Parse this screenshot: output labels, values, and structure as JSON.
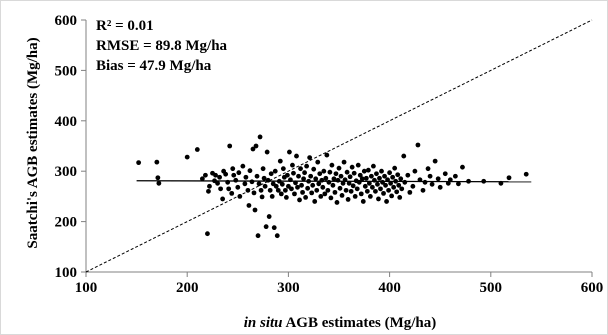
{
  "chart_data": {
    "type": "scatter",
    "title": "",
    "xlabel_italic": "in situ",
    "xlabel_rest": " AGB estimates (Mg/ha)",
    "ylabel": "Saatchi's AGB estimates (Mg/ha)",
    "xlim": [
      100,
      600
    ],
    "ylim": [
      100,
      600
    ],
    "xticks": [
      "100",
      "200",
      "300",
      "400",
      "500",
      "600"
    ],
    "yticks": [
      "100",
      "200",
      "300",
      "400",
      "500",
      "600"
    ],
    "annotations": [
      "R² = 0.01",
      "RMSE = 89.8 Mg/ha",
      "Bias = 47.9 Mg/ha"
    ],
    "one_to_one_line": {
      "style": "dashed",
      "from": [
        100,
        100
      ],
      "to": [
        600,
        600
      ]
    },
    "regression_line": {
      "style": "solid",
      "from": [
        150,
        281
      ],
      "to": [
        540,
        279
      ]
    },
    "points_color": "#000000",
    "points": [
      [
        152,
        317
      ],
      [
        170,
        318
      ],
      [
        171,
        287
      ],
      [
        172,
        276
      ],
      [
        200,
        328
      ],
      [
        210,
        343
      ],
      [
        215,
        285
      ],
      [
        218,
        292
      ],
      [
        220,
        176
      ],
      [
        221,
        260
      ],
      [
        222,
        270
      ],
      [
        225,
        296
      ],
      [
        227,
        281
      ],
      [
        228,
        292
      ],
      [
        230,
        276
      ],
      [
        232,
        288
      ],
      [
        233,
        265
      ],
      [
        235,
        245
      ],
      [
        236,
        300
      ],
      [
        238,
        294
      ],
      [
        240,
        278
      ],
      [
        241,
        265
      ],
      [
        242,
        350
      ],
      [
        244,
        256
      ],
      [
        245,
        305
      ],
      [
        246,
        292
      ],
      [
        248,
        282
      ],
      [
        250,
        268
      ],
      [
        251,
        297
      ],
      [
        252,
        250
      ],
      [
        255,
        310
      ],
      [
        257,
        275
      ],
      [
        258,
        288
      ],
      [
        260,
        262
      ],
      [
        261,
        232
      ],
      [
        262,
        301
      ],
      [
        264,
        279
      ],
      [
        265,
        344
      ],
      [
        266,
        257
      ],
      [
        267,
        223
      ],
      [
        268,
        350
      ],
      [
        269,
        290
      ],
      [
        270,
        172
      ],
      [
        271,
        275
      ],
      [
        272,
        368
      ],
      [
        273,
        262
      ],
      [
        274,
        249
      ],
      [
        275,
        305
      ],
      [
        276,
        286
      ],
      [
        277,
        270
      ],
      [
        278,
        190
      ],
      [
        279,
        338
      ],
      [
        280,
        282
      ],
      [
        281,
        210
      ],
      [
        282,
        262
      ],
      [
        283,
        295
      ],
      [
        284,
        250
      ],
      [
        285,
        275
      ],
      [
        286,
        188
      ],
      [
        287,
        300
      ],
      [
        288,
        270
      ],
      [
        289,
        172
      ],
      [
        290,
        262
      ],
      [
        291,
        280
      ],
      [
        292,
        320
      ],
      [
        293,
        255
      ],
      [
        294,
        274
      ],
      [
        295,
        305
      ],
      [
        296,
        288
      ],
      [
        297,
        262
      ],
      [
        298,
        248
      ],
      [
        299,
        292
      ],
      [
        300,
        270
      ],
      [
        301,
        338
      ],
      [
        302,
        283
      ],
      [
        303,
        265
      ],
      [
        304,
        312
      ],
      [
        305,
        296
      ],
      [
        306,
        255
      ],
      [
        307,
        277
      ],
      [
        308,
        330
      ],
      [
        309,
        268
      ],
      [
        310,
        290
      ],
      [
        311,
        243
      ],
      [
        312,
        305
      ],
      [
        313,
        272
      ],
      [
        314,
        258
      ],
      [
        315,
        285
      ],
      [
        316,
        297
      ],
      [
        317,
        248
      ],
      [
        318,
        310
      ],
      [
        319,
        266
      ],
      [
        320,
        280
      ],
      [
        321,
        327
      ],
      [
        322,
        290
      ],
      [
        323,
        257
      ],
      [
        324,
        272
      ],
      [
        325,
        304
      ],
      [
        326,
        240
      ],
      [
        327,
        285
      ],
      [
        328,
        262
      ],
      [
        329,
        318
      ],
      [
        330,
        275
      ],
      [
        331,
        295
      ],
      [
        332,
        250
      ],
      [
        333,
        282
      ],
      [
        334,
        268
      ],
      [
        335,
        300
      ],
      [
        336,
        255
      ],
      [
        337,
        286
      ],
      [
        338,
        332
      ],
      [
        339,
        262
      ],
      [
        340,
        278
      ],
      [
        341,
        298
      ],
      [
        342,
        247
      ],
      [
        343,
        312
      ],
      [
        344,
        272
      ],
      [
        345,
        285
      ],
      [
        346,
        258
      ],
      [
        347,
        295
      ],
      [
        348,
        238
      ],
      [
        349,
        282
      ],
      [
        350,
        306
      ],
      [
        351,
        266
      ],
      [
        352,
        290
      ],
      [
        353,
        252
      ],
      [
        354,
        276
      ],
      [
        355,
        318
      ],
      [
        356,
        283
      ],
      [
        357,
        262
      ],
      [
        358,
        298
      ],
      [
        359,
        244
      ],
      [
        360,
        276
      ],
      [
        361,
        289
      ],
      [
        362,
        260
      ],
      [
        363,
        308
      ],
      [
        364,
        271
      ],
      [
        365,
        296
      ],
      [
        366,
        250
      ],
      [
        367,
        281
      ],
      [
        368,
        265
      ],
      [
        369,
        312
      ],
      [
        370,
        278
      ],
      [
        371,
        292
      ],
      [
        372,
        255
      ],
      [
        373,
        285
      ],
      [
        374,
        240
      ],
      [
        375,
        300
      ],
      [
        376,
        270
      ],
      [
        377,
        286
      ],
      [
        378,
        260
      ],
      [
        379,
        302
      ],
      [
        380,
        276
      ],
      [
        381,
        250
      ],
      [
        382,
        290
      ],
      [
        383,
        268
      ],
      [
        384,
        310
      ],
      [
        385,
        282
      ],
      [
        386,
        260
      ],
      [
        387,
        295
      ],
      [
        388,
        274
      ],
      [
        389,
        245
      ],
      [
        390,
        286
      ],
      [
        391,
        265
      ],
      [
        392,
        300
      ],
      [
        393,
        278
      ],
      [
        394,
        256
      ],
      [
        395,
        290
      ],
      [
        396,
        272
      ],
      [
        397,
        240
      ],
      [
        398,
        283
      ],
      [
        399,
        262
      ],
      [
        400,
        297
      ],
      [
        401,
        276
      ],
      [
        402,
        251
      ],
      [
        403,
        288
      ],
      [
        404,
        268
      ],
      [
        405,
        306
      ],
      [
        406,
        280
      ],
      [
        407,
        259
      ],
      [
        408,
        293
      ],
      [
        409,
        272
      ],
      [
        410,
        248
      ],
      [
        411,
        285
      ],
      [
        412,
        265
      ],
      [
        414,
        330
      ],
      [
        415,
        278
      ],
      [
        418,
        292
      ],
      [
        420,
        258
      ],
      [
        423,
        270
      ],
      [
        425,
        300
      ],
      [
        428,
        352
      ],
      [
        430,
        283
      ],
      [
        433,
        262
      ],
      [
        435,
        278
      ],
      [
        438,
        305
      ],
      [
        440,
        290
      ],
      [
        442,
        274
      ],
      [
        445,
        320
      ],
      [
        448,
        285
      ],
      [
        450,
        268
      ],
      [
        455,
        295
      ],
      [
        458,
        276
      ],
      [
        460,
        283
      ],
      [
        465,
        290
      ],
      [
        468,
        275
      ],
      [
        472,
        308
      ],
      [
        478,
        280
      ],
      [
        493,
        280
      ],
      [
        510,
        276
      ],
      [
        518,
        287
      ],
      [
        535,
        294
      ]
    ]
  }
}
